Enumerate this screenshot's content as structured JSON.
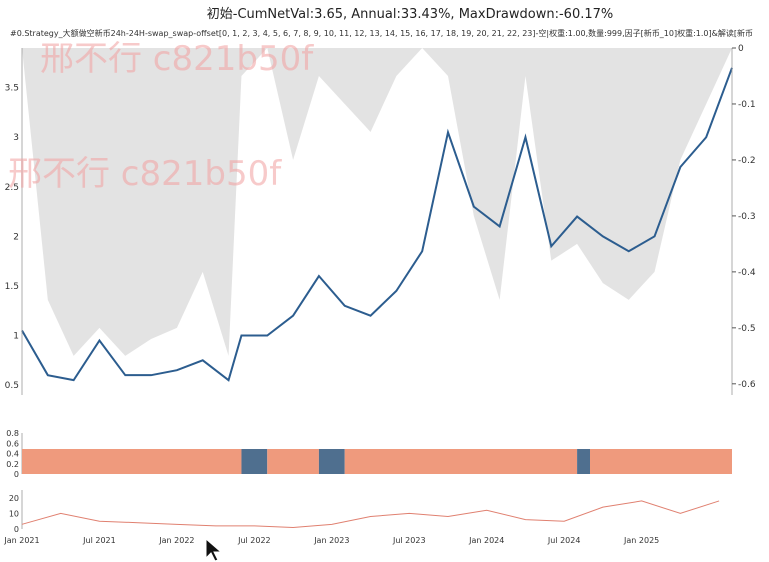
{
  "title": "初始-CumNetVal:3.65, Annual:33.43%, MaxDrawdown:-60.17%",
  "subtitle": "#0.Strategy_大额做空新币24h-24H-swap_swap-offset[0, 1, 2, 3, 4, 5, 6, 7, 8, 9, 10, 11, 12, 13, 14, 15, 16, 17, 18, 19, 20, 21, 22, 23]-空|权重:1.00,数量:999,因子[新币_10]权重:1.0]&解读[新币",
  "watermarks": [
    "邢不行 c821b50f",
    "邢不行 c821b50f"
  ],
  "colors": {
    "nav_line": "#2c5d8f",
    "drawdown_fill": "#e3e3e3",
    "position_short": "#ef9a7d",
    "position_other": "#4f6f8f",
    "bottom_line": "#e08070"
  },
  "chart_data": [
    {
      "type": "line",
      "panel": "main",
      "series": [
        {
          "x": [
            "2021-01",
            "2021-03",
            "2021-05",
            "2021-07",
            "2021-09",
            "2021-11",
            "2022-01",
            "2022-03",
            "2022-05",
            "2022-06",
            "2022-08",
            "2022-10",
            "2022-12",
            "2023-02",
            "2023-04",
            "2023-06",
            "2023-08",
            "2023-10",
            "2023-12",
            "2024-02",
            "2024-04",
            "2024-06",
            "2024-08",
            "2024-10",
            "2024-12",
            "2025-02",
            "2025-04",
            "2025-06",
            "2025-08"
          ],
          "values": [
            1.05,
            0.6,
            0.55,
            0.95,
            0.6,
            0.6,
            0.65,
            0.75,
            0.55,
            1.0,
            1.0,
            1.2,
            1.6,
            1.3,
            1.2,
            1.45,
            1.85,
            3.05,
            2.3,
            2.1,
            3.0,
            1.9,
            2.2,
            2.0,
            1.85,
            2.0,
            2.7,
            3.0,
            3.7
          ]
        }
      ],
      "ylim": [
        0.4,
        3.9
      ],
      "yticks": [
        0.5,
        1,
        1.5,
        2,
        2.5,
        3,
        3.5
      ],
      "secondary_axis": {
        "name": "drawdown",
        "ylim": [
          -0.62,
          0
        ],
        "yticks": [
          0,
          -0.1,
          -0.2,
          -0.3,
          -0.4,
          -0.5,
          -0.6
        ],
        "values": [
          0,
          -0.45,
          -0.55,
          -0.5,
          -0.55,
          -0.52,
          -0.5,
          -0.4,
          -0.55,
          -0.05,
          0,
          -0.2,
          -0.05,
          -0.1,
          -0.15,
          -0.05,
          0,
          -0.05,
          -0.3,
          -0.45,
          -0.05,
          -0.38,
          -0.35,
          -0.42,
          -0.45,
          -0.4,
          -0.2,
          -0.1,
          0
        ]
      }
    },
    {
      "type": "area",
      "panel": "position",
      "ylim": [
        0,
        0.8
      ],
      "yticks": [
        0,
        0.2,
        0.4,
        0.6,
        0.8
      ],
      "segments": [
        {
          "from": "2021-01",
          "to": "2022-06",
          "state": "short"
        },
        {
          "from": "2022-06",
          "to": "2022-08",
          "state": "other"
        },
        {
          "from": "2022-08",
          "to": "2022-12",
          "state": "short"
        },
        {
          "from": "2022-12",
          "to": "2023-02",
          "state": "other"
        },
        {
          "from": "2023-02",
          "to": "2024-08",
          "state": "short"
        },
        {
          "from": "2024-08",
          "to": "2024-09",
          "state": "other"
        },
        {
          "from": "2024-09",
          "to": "2025-08",
          "state": "short"
        }
      ]
    },
    {
      "type": "line",
      "panel": "bottom",
      "ylim": [
        0,
        25
      ],
      "yticks": [
        0,
        10,
        20
      ],
      "x": [
        "2021-01",
        "2021-04",
        "2021-07",
        "2021-10",
        "2022-01",
        "2022-04",
        "2022-07",
        "2022-10",
        "2023-01",
        "2023-04",
        "2023-07",
        "2023-10",
        "2024-01",
        "2024-04",
        "2024-07",
        "2024-10",
        "2025-01",
        "2025-04",
        "2025-07"
      ],
      "values": [
        3,
        10,
        5,
        4,
        3,
        2,
        2,
        1,
        3,
        8,
        10,
        8,
        12,
        6,
        5,
        14,
        18,
        10,
        18
      ]
    }
  ],
  "xticks": [
    "Jan 2021",
    "Jul 2021",
    "Jan 2022",
    "Jul 2022",
    "Jan 2023",
    "Jul 2023",
    "Jan 2024",
    "Jul 2024",
    "Jan 2025"
  ]
}
